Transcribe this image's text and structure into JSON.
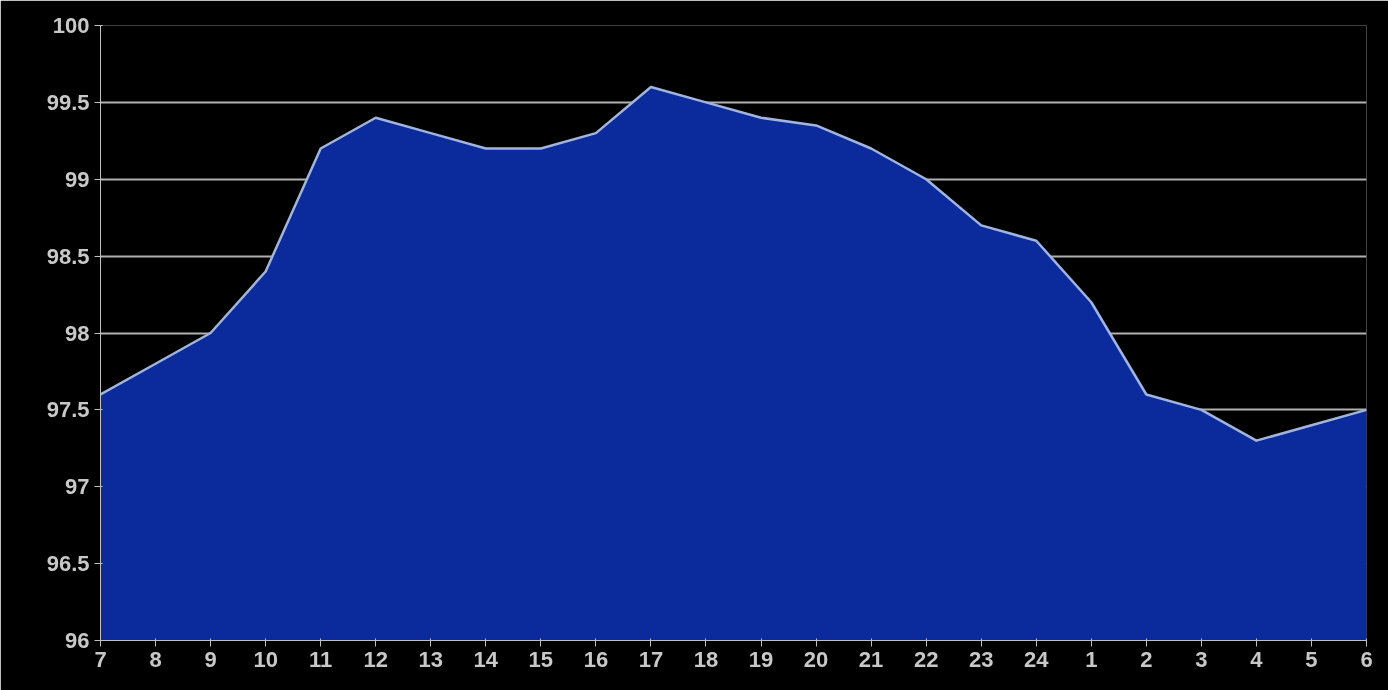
{
  "chart_data": {
    "type": "area",
    "categories": [
      "7",
      "8",
      "9",
      "10",
      "11",
      "12",
      "13",
      "14",
      "15",
      "16",
      "17",
      "18",
      "19",
      "20",
      "21",
      "22",
      "23",
      "24",
      "1",
      "2",
      "3",
      "4",
      "5",
      "6"
    ],
    "series": [
      {
        "color": "#0b2a9c",
        "values": [
          97.6,
          97.8,
          98.0,
          98.4,
          99.2,
          99.4,
          99.3,
          99.2,
          99.2,
          99.3,
          99.6,
          99.5,
          99.4,
          99.35,
          99.2,
          99.0,
          98.7,
          98.6,
          98.2,
          97.6,
          97.5,
          97.3,
          97.4,
          97.5
        ]
      }
    ],
    "ylim": [
      96,
      100
    ],
    "yticks": [
      96,
      96.5,
      97,
      97.5,
      98,
      98.5,
      99,
      99.5,
      100
    ],
    "grid": "y",
    "marker": "none"
  }
}
